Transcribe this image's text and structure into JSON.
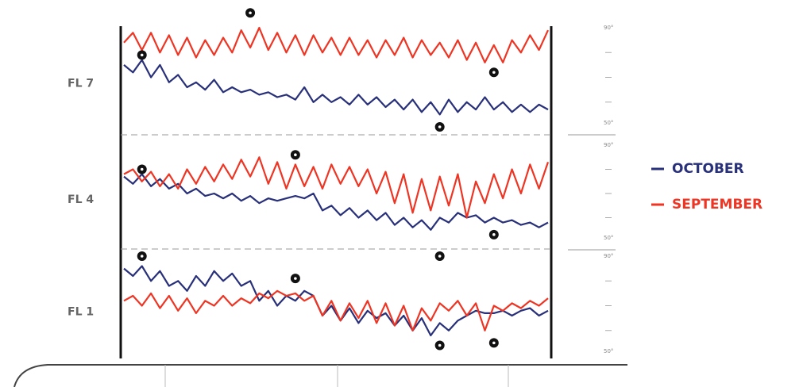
{
  "chart_data": [
    {
      "type": "line",
      "title": "FL 7",
      "ylim": [
        50,
        90
      ],
      "yticks": [
        {
          "value": 50,
          "label": "50°"
        },
        {
          "value": 90,
          "label": "90°"
        }
      ],
      "minor_yticks": [
        60,
        70,
        80
      ],
      "series": [
        {
          "name": "OCTOBER",
          "color": "#28307a",
          "values": [
            75,
            72,
            77,
            70,
            75,
            68,
            71,
            66,
            68,
            65,
            69,
            64,
            66,
            64,
            65,
            63,
            64,
            62,
            63,
            61,
            66,
            60,
            63,
            60,
            62,
            59,
            63,
            59,
            62,
            58,
            61,
            57,
            61,
            56,
            60,
            55,
            61,
            56,
            60,
            57,
            62,
            57,
            60,
            56,
            59,
            56,
            59,
            57
          ]
        },
        {
          "name": "SEPTEMBER",
          "color": "#ee3524",
          "values": [
            84,
            88,
            81,
            88,
            80,
            87,
            79,
            86,
            78,
            85,
            79,
            86,
            80,
            89,
            82,
            90,
            81,
            88,
            80,
            87,
            79,
            87,
            80,
            86,
            79,
            86,
            79,
            85,
            78,
            85,
            79,
            86,
            78,
            85,
            79,
            84,
            78,
            85,
            77,
            84,
            76,
            83,
            76,
            85,
            80,
            87,
            81,
            89
          ]
        }
      ],
      "highlights": [
        {
          "x": 2,
          "y": 79
        },
        {
          "x": 14,
          "y": 96
        },
        {
          "x": 41,
          "y": 72
        },
        {
          "x": 35,
          "y": 50
        }
      ]
    },
    {
      "type": "line",
      "title": "FL 4",
      "ylim": [
        50,
        90
      ],
      "yticks": [
        {
          "value": 50,
          "label": "50°"
        },
        {
          "value": 90,
          "label": "90°"
        }
      ],
      "minor_yticks": [
        60,
        70,
        80
      ],
      "series": [
        {
          "name": "OCTOBER",
          "color": "#28307a",
          "values": [
            77,
            74,
            78,
            73,
            76,
            72,
            74,
            70,
            72,
            69,
            70,
            68,
            70,
            67,
            69,
            66,
            68,
            67,
            68,
            69,
            68,
            70,
            63,
            65,
            61,
            64,
            60,
            63,
            59,
            62,
            57,
            60,
            56,
            59,
            55,
            60,
            58,
            62,
            60,
            61,
            58,
            60,
            58,
            59,
            57,
            58,
            56,
            58
          ]
        },
        {
          "name": "SEPTEMBER",
          "color": "#ee3524",
          "values": [
            78,
            80,
            75,
            79,
            73,
            78,
            72,
            80,
            74,
            81,
            75,
            82,
            76,
            84,
            77,
            85,
            74,
            83,
            72,
            82,
            73,
            81,
            72,
            82,
            74,
            81,
            73,
            80,
            70,
            79,
            66,
            78,
            62,
            76,
            63,
            77,
            65,
            78,
            60,
            75,
            66,
            78,
            68,
            80,
            70,
            82,
            72,
            83
          ]
        }
      ],
      "highlights": [
        {
          "x": 2,
          "y": 80
        },
        {
          "x": 19,
          "y": 86
        },
        {
          "x": 41,
          "y": 53
        }
      ]
    },
    {
      "type": "line",
      "title": "FL 1",
      "ylim": [
        50,
        90
      ],
      "yticks": [
        {
          "value": 50,
          "label": "50°"
        },
        {
          "value": 90,
          "label": "90°"
        }
      ],
      "minor_yticks": [
        60,
        70,
        80
      ],
      "series": [
        {
          "name": "OCTOBER",
          "color": "#28307a",
          "values": [
            85,
            82,
            86,
            80,
            84,
            78,
            80,
            76,
            82,
            78,
            84,
            80,
            83,
            78,
            80,
            72,
            76,
            70,
            74,
            72,
            76,
            74,
            66,
            70,
            64,
            69,
            63,
            68,
            65,
            67,
            62,
            66,
            60,
            65,
            58,
            63,
            60,
            64,
            66,
            68,
            67,
            67,
            68,
            66,
            68,
            69,
            66,
            68
          ]
        },
        {
          "name": "SEPTEMBER",
          "color": "#ee3524",
          "values": [
            72,
            74,
            70,
            75,
            69,
            74,
            68,
            73,
            67,
            72,
            70,
            74,
            70,
            73,
            71,
            75,
            73,
            76,
            74,
            75,
            72,
            74,
            66,
            72,
            64,
            71,
            65,
            72,
            63,
            71,
            62,
            70,
            60,
            69,
            64,
            71,
            68,
            72,
            66,
            71,
            60,
            70,
            68,
            71,
            69,
            72,
            70,
            73
          ]
        }
      ],
      "highlights": [
        {
          "x": 2,
          "y": 90
        },
        {
          "x": 19,
          "y": 81
        },
        {
          "x": 35,
          "y": 90
        },
        {
          "x": 35,
          "y": 54
        },
        {
          "x": 41,
          "y": 55
        }
      ]
    }
  ]
}
